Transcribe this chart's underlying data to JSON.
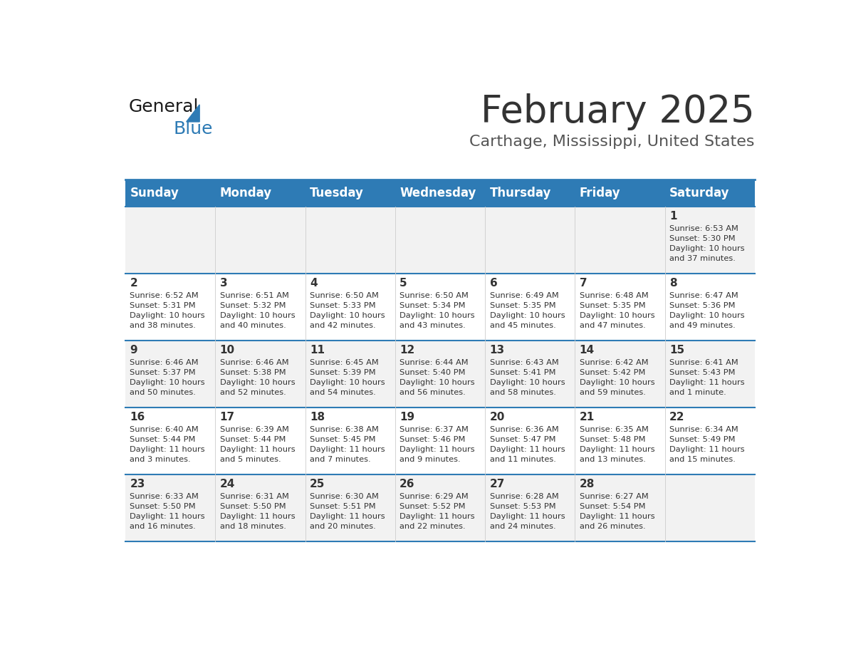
{
  "title": "February 2025",
  "subtitle": "Carthage, Mississippi, United States",
  "days_of_week": [
    "Sunday",
    "Monday",
    "Tuesday",
    "Wednesday",
    "Thursday",
    "Friday",
    "Saturday"
  ],
  "header_bg": "#2E7BB5",
  "header_text": "#FFFFFF",
  "row_bg_odd": "#F2F2F2",
  "row_bg_even": "#FFFFFF",
  "cell_border": "#2E7BB5",
  "day_num_color": "#333333",
  "info_text_color": "#333333",
  "title_color": "#333333",
  "subtitle_color": "#555555",
  "logo_general_color": "#1A1A1A",
  "logo_blue_color": "#2E7BB5",
  "weeks": [
    {
      "days": [
        {
          "day": null,
          "info": null
        },
        {
          "day": null,
          "info": null
        },
        {
          "day": null,
          "info": null
        },
        {
          "day": null,
          "info": null
        },
        {
          "day": null,
          "info": null
        },
        {
          "day": null,
          "info": null
        },
        {
          "day": 1,
          "info": "Sunrise: 6:53 AM\nSunset: 5:30 PM\nDaylight: 10 hours\nand 37 minutes."
        }
      ]
    },
    {
      "days": [
        {
          "day": 2,
          "info": "Sunrise: 6:52 AM\nSunset: 5:31 PM\nDaylight: 10 hours\nand 38 minutes."
        },
        {
          "day": 3,
          "info": "Sunrise: 6:51 AM\nSunset: 5:32 PM\nDaylight: 10 hours\nand 40 minutes."
        },
        {
          "day": 4,
          "info": "Sunrise: 6:50 AM\nSunset: 5:33 PM\nDaylight: 10 hours\nand 42 minutes."
        },
        {
          "day": 5,
          "info": "Sunrise: 6:50 AM\nSunset: 5:34 PM\nDaylight: 10 hours\nand 43 minutes."
        },
        {
          "day": 6,
          "info": "Sunrise: 6:49 AM\nSunset: 5:35 PM\nDaylight: 10 hours\nand 45 minutes."
        },
        {
          "day": 7,
          "info": "Sunrise: 6:48 AM\nSunset: 5:35 PM\nDaylight: 10 hours\nand 47 minutes."
        },
        {
          "day": 8,
          "info": "Sunrise: 6:47 AM\nSunset: 5:36 PM\nDaylight: 10 hours\nand 49 minutes."
        }
      ]
    },
    {
      "days": [
        {
          "day": 9,
          "info": "Sunrise: 6:46 AM\nSunset: 5:37 PM\nDaylight: 10 hours\nand 50 minutes."
        },
        {
          "day": 10,
          "info": "Sunrise: 6:46 AM\nSunset: 5:38 PM\nDaylight: 10 hours\nand 52 minutes."
        },
        {
          "day": 11,
          "info": "Sunrise: 6:45 AM\nSunset: 5:39 PM\nDaylight: 10 hours\nand 54 minutes."
        },
        {
          "day": 12,
          "info": "Sunrise: 6:44 AM\nSunset: 5:40 PM\nDaylight: 10 hours\nand 56 minutes."
        },
        {
          "day": 13,
          "info": "Sunrise: 6:43 AM\nSunset: 5:41 PM\nDaylight: 10 hours\nand 58 minutes."
        },
        {
          "day": 14,
          "info": "Sunrise: 6:42 AM\nSunset: 5:42 PM\nDaylight: 10 hours\nand 59 minutes."
        },
        {
          "day": 15,
          "info": "Sunrise: 6:41 AM\nSunset: 5:43 PM\nDaylight: 11 hours\nand 1 minute."
        }
      ]
    },
    {
      "days": [
        {
          "day": 16,
          "info": "Sunrise: 6:40 AM\nSunset: 5:44 PM\nDaylight: 11 hours\nand 3 minutes."
        },
        {
          "day": 17,
          "info": "Sunrise: 6:39 AM\nSunset: 5:44 PM\nDaylight: 11 hours\nand 5 minutes."
        },
        {
          "day": 18,
          "info": "Sunrise: 6:38 AM\nSunset: 5:45 PM\nDaylight: 11 hours\nand 7 minutes."
        },
        {
          "day": 19,
          "info": "Sunrise: 6:37 AM\nSunset: 5:46 PM\nDaylight: 11 hours\nand 9 minutes."
        },
        {
          "day": 20,
          "info": "Sunrise: 6:36 AM\nSunset: 5:47 PM\nDaylight: 11 hours\nand 11 minutes."
        },
        {
          "day": 21,
          "info": "Sunrise: 6:35 AM\nSunset: 5:48 PM\nDaylight: 11 hours\nand 13 minutes."
        },
        {
          "day": 22,
          "info": "Sunrise: 6:34 AM\nSunset: 5:49 PM\nDaylight: 11 hours\nand 15 minutes."
        }
      ]
    },
    {
      "days": [
        {
          "day": 23,
          "info": "Sunrise: 6:33 AM\nSunset: 5:50 PM\nDaylight: 11 hours\nand 16 minutes."
        },
        {
          "day": 24,
          "info": "Sunrise: 6:31 AM\nSunset: 5:50 PM\nDaylight: 11 hours\nand 18 minutes."
        },
        {
          "day": 25,
          "info": "Sunrise: 6:30 AM\nSunset: 5:51 PM\nDaylight: 11 hours\nand 20 minutes."
        },
        {
          "day": 26,
          "info": "Sunrise: 6:29 AM\nSunset: 5:52 PM\nDaylight: 11 hours\nand 22 minutes."
        },
        {
          "day": 27,
          "info": "Sunrise: 6:28 AM\nSunset: 5:53 PM\nDaylight: 11 hours\nand 24 minutes."
        },
        {
          "day": 28,
          "info": "Sunrise: 6:27 AM\nSunset: 5:54 PM\nDaylight: 11 hours\nand 26 minutes."
        },
        {
          "day": null,
          "info": null
        }
      ]
    }
  ]
}
